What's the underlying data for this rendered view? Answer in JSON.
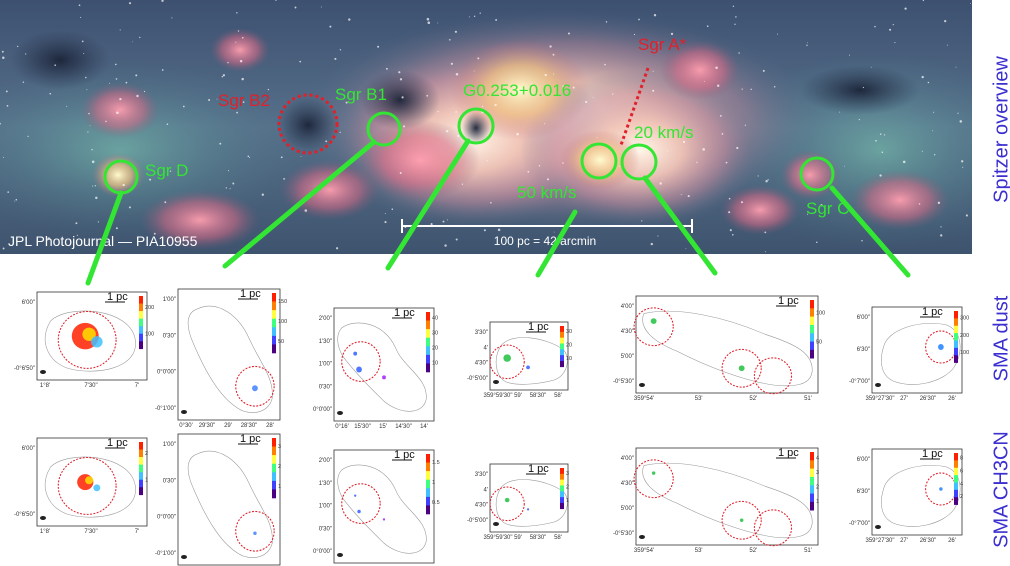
{
  "overview": {
    "credit": "JPL Photojournal — PIA10955",
    "scale_bar_label": "100 pc = 42 arcmin",
    "sources": [
      {
        "name": "Sgr B2",
        "color": "#e0202a"
      },
      {
        "name": "Sgr B1",
        "color": "#33e633"
      },
      {
        "name": "G0.253+0.016",
        "color": "#33e633"
      },
      {
        "name": "Sgr A*",
        "color": "#e0202a"
      },
      {
        "name": "20 km/s",
        "color": "#33e633"
      },
      {
        "name": "50 km/s",
        "color": "#33e633"
      },
      {
        "name": "Sgr D",
        "color": "#33e633"
      },
      {
        "name": "Sgr C",
        "color": "#33e633"
      }
    ]
  },
  "row_labels": {
    "top": "Spitzer overview",
    "middle": "SMA dust",
    "bottom": "SMA CH3CN"
  },
  "scale_label": "1 pc",
  "dust_panels": [
    {
      "yticks": [
        "6'00\"",
        "-0°6'50\""
      ],
      "xticks": [
        "1°8'",
        "7'30\"",
        "7'"
      ],
      "cbar": [
        "200",
        "100"
      ]
    },
    {
      "yticks": [
        "1'00\"",
        "0'30\"",
        "0°0'00\"",
        "-0°1'00\""
      ],
      "xticks": [
        "0°30'",
        "29'30\"",
        "29'",
        "28'30\"",
        "28'"
      ],
      "cbar": [
        "150",
        "100",
        "50"
      ]
    },
    {
      "yticks": [
        "2'00\"",
        "1'30\"",
        "1'00\"",
        "0'30\"",
        "0°0'00\""
      ],
      "xticks": [
        "0°16'",
        "15'30\"",
        "15'",
        "14'30\"",
        "14'"
      ],
      "cbar": [
        "40",
        "30",
        "20",
        "10"
      ]
    },
    {
      "yticks": [
        "3'30\"",
        "4'",
        "4'30\"",
        "-0°5'00\""
      ],
      "xticks": [
        "359°59'30\"",
        "59'",
        "58'30\"",
        "58'"
      ],
      "cbar": [
        "30",
        "20",
        "10"
      ]
    },
    {
      "yticks": [
        "4'00\"",
        "4'30\"",
        "5'00\"",
        "-0°5'30\""
      ],
      "xticks": [
        "359°54'",
        "53'",
        "52'",
        "51'"
      ],
      "cbar": [
        "100",
        "50"
      ]
    },
    {
      "yticks": [
        "6'00\"",
        "6'30\"",
        "-0°7'00\""
      ],
      "xticks": [
        "359°27'30\"",
        "27'",
        "26'30\"",
        "26'"
      ],
      "cbar": [
        "300",
        "200",
        "100"
      ]
    }
  ],
  "ch3cn_panels": [
    {
      "yticks": [
        "6'00\"",
        "-0°6'50\""
      ],
      "xticks": [
        "1°8'",
        "7'30\"",
        "7'"
      ],
      "cbar": [
        "2",
        "1"
      ]
    },
    {
      "yticks": [
        "1'00\"",
        "0'30\"",
        "0°0'00\"",
        "-0°1'00\""
      ],
      "xticks": [
        "0°30'",
        "29'30\"",
        "29'",
        "28'30\"",
        "28'"
      ],
      "cbar": [
        "3",
        "2",
        "1"
      ]
    },
    {
      "yticks": [
        "2'00\"",
        "1'30\"",
        "1'00\"",
        "0'30\"",
        "0°0'00\""
      ],
      "xticks": [
        "0°16'",
        "15'30\"",
        "15'",
        "14'30\"",
        "14'"
      ],
      "cbar": [
        "1.5",
        "1",
        "0.5"
      ]
    },
    {
      "yticks": [
        "3'30\"",
        "4'",
        "4'30\"",
        "-0°5'00\""
      ],
      "xticks": [
        "359°59'30\"",
        "59'",
        "58'30\"",
        "58'"
      ],
      "cbar": [
        "3",
        "2",
        "1"
      ]
    },
    {
      "yticks": [
        "4'00\"",
        "4'30\"",
        "5'00\"",
        "-0°5'30\""
      ],
      "xticks": [
        "359°54'",
        "53'",
        "52'",
        "51'"
      ],
      "cbar": [
        "4",
        "3",
        "2",
        "1"
      ]
    },
    {
      "yticks": [
        "6'00\"",
        "6'30\"",
        "-0°7'00\""
      ],
      "xticks": [
        "359°27'30\"",
        "27'",
        "26'30\"",
        "26'"
      ],
      "cbar": [
        "8",
        "6",
        "4",
        "2"
      ]
    }
  ]
}
